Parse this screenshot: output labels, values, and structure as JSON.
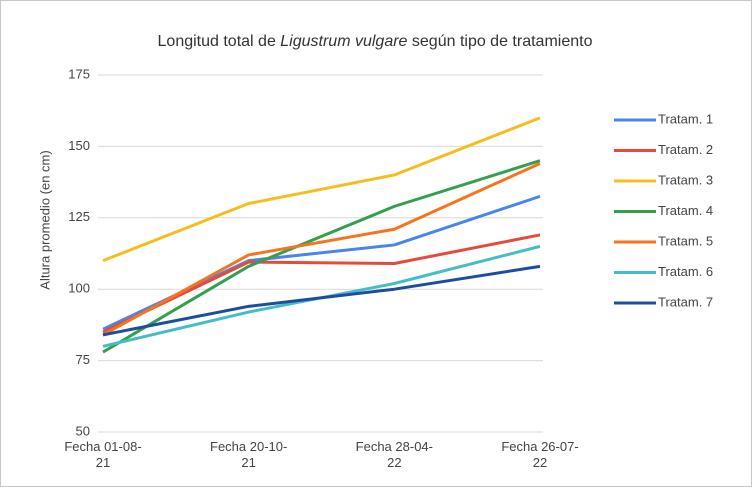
{
  "chart_data": {
    "type": "line",
    "title": [
      "Longitud total de ",
      "Ligustrum vulgare",
      " según tipo de tratamiento"
    ],
    "y_label": "Altura promedio (en cm)",
    "categories": [
      "Fecha 01-08-21",
      "Fecha 20-10-21",
      "Fecha 28-04-22",
      "Fecha 26-07-22"
    ],
    "ylim": [
      50,
      175
    ],
    "yticks": [
      50,
      75,
      100,
      125,
      150,
      175
    ],
    "grid": true,
    "legend": "right",
    "series": [
      {
        "name": "Tratam. 1",
        "color": "#4a86e8",
        "values": [
          86,
          110,
          115.5,
          132.5
        ]
      },
      {
        "name": "Tratam. 2",
        "color": "#e64a3c",
        "values": [
          85,
          109.5,
          109,
          119
        ]
      },
      {
        "name": "Tratam. 3",
        "color": "#f5bd1f",
        "values": [
          110,
          130,
          140,
          160
        ]
      },
      {
        "name": "Tratam. 4",
        "color": "#34a04e",
        "values": [
          78,
          108,
          129,
          145
        ]
      },
      {
        "name": "Tratam. 5",
        "color": "#f7741f",
        "values": [
          84,
          112,
          121,
          144
        ]
      },
      {
        "name": "Tratam. 6",
        "color": "#46bdc6",
        "values": [
          80,
          92,
          102,
          115
        ]
      },
      {
        "name": "Tratam. 7",
        "color": "#1c4ea0",
        "values": [
          84,
          94,
          100,
          108
        ]
      }
    ]
  }
}
